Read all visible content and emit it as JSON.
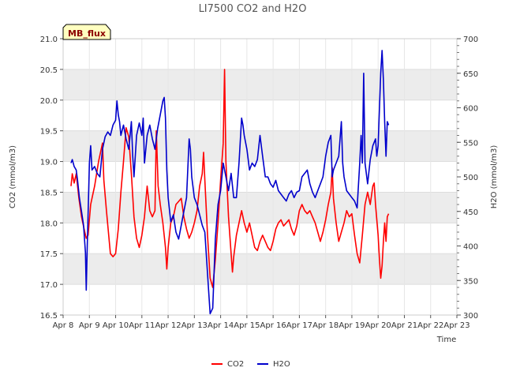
{
  "chart_data": {
    "type": "line",
    "title": "LI7500 CO2 and H2O",
    "badge": "MB_flux",
    "xlabel": "Time",
    "ylabel_left": "CO2 (mmol/m3)",
    "ylabel_right": "H2O (mmol/m3)",
    "x_ticks": [
      "Apr 8",
      "Apr 9",
      "Apr 10",
      "Apr 11",
      "Apr 12",
      "Apr 13",
      "Apr 14",
      "Apr 15",
      "Apr 16",
      "Apr 17",
      "Apr 18",
      "Apr 19",
      "Apr 20",
      "Apr 21",
      "Apr 22",
      "Apr 23"
    ],
    "xlim": [
      0,
      15
    ],
    "ylim_left": [
      16.5,
      21.0
    ],
    "yticks_left": [
      "16.5",
      "17.0",
      "17.5",
      "18.0",
      "18.5",
      "19.0",
      "19.5",
      "20.0",
      "20.5",
      "21.0"
    ],
    "ylim_right": [
      300,
      700
    ],
    "yticks_right": [
      "300",
      "350",
      "400",
      "450",
      "500",
      "550",
      "600",
      "650",
      "700"
    ],
    "grid": true,
    "legend_position": "bottom-center",
    "colors": {
      "co2": "#ff0000",
      "h2o": "#0000cc",
      "band": "#ececec",
      "badge_fill": "#ffffc0",
      "badge_text": "#8b0000"
    },
    "x_unit_note": "x values are days after Apr 8 (0 = Apr 8, 15 = Apr 23)",
    "series": [
      {
        "name": "CO2",
        "axis": "left",
        "color": "#ff0000",
        "points": [
          [
            0.3,
            18.6
          ],
          [
            0.35,
            18.8
          ],
          [
            0.42,
            18.65
          ],
          [
            0.5,
            18.8
          ],
          [
            0.6,
            18.4
          ],
          [
            0.7,
            18.1
          ],
          [
            0.8,
            17.9
          ],
          [
            0.88,
            17.75
          ],
          [
            0.95,
            17.8
          ],
          [
            1.05,
            18.3
          ],
          [
            1.2,
            18.6
          ],
          [
            1.35,
            19.0
          ],
          [
            1.5,
            19.3
          ],
          [
            1.55,
            18.7
          ],
          [
            1.65,
            18.2
          ],
          [
            1.8,
            17.5
          ],
          [
            1.9,
            17.45
          ],
          [
            2.0,
            17.5
          ],
          [
            2.1,
            17.9
          ],
          [
            2.2,
            18.5
          ],
          [
            2.3,
            19.0
          ],
          [
            2.4,
            19.55
          ],
          [
            2.5,
            19.4
          ],
          [
            2.6,
            18.8
          ],
          [
            2.7,
            18.1
          ],
          [
            2.8,
            17.75
          ],
          [
            2.9,
            17.6
          ],
          [
            3.0,
            17.8
          ],
          [
            3.1,
            18.1
          ],
          [
            3.2,
            18.6
          ],
          [
            3.3,
            18.2
          ],
          [
            3.4,
            18.1
          ],
          [
            3.5,
            18.2
          ],
          [
            3.55,
            19.5
          ],
          [
            3.62,
            18.6
          ],
          [
            3.7,
            18.3
          ],
          [
            3.8,
            18.0
          ],
          [
            3.9,
            17.6
          ],
          [
            3.95,
            17.25
          ],
          [
            4.0,
            17.6
          ],
          [
            4.1,
            18.0
          ],
          [
            4.2,
            18.1
          ],
          [
            4.3,
            18.3
          ],
          [
            4.4,
            18.35
          ],
          [
            4.5,
            18.4
          ],
          [
            4.6,
            18.1
          ],
          [
            4.7,
            17.9
          ],
          [
            4.8,
            17.75
          ],
          [
            4.9,
            17.85
          ],
          [
            5.0,
            18.0
          ],
          [
            5.1,
            18.2
          ],
          [
            5.2,
            18.6
          ],
          [
            5.3,
            18.8
          ],
          [
            5.35,
            19.15
          ],
          [
            5.4,
            18.7
          ],
          [
            5.5,
            17.8
          ],
          [
            5.6,
            17.1
          ],
          [
            5.7,
            16.95
          ],
          [
            5.8,
            17.4
          ],
          [
            5.9,
            18.0
          ],
          [
            6.0,
            18.7
          ],
          [
            6.1,
            19.3
          ],
          [
            6.15,
            20.5
          ],
          [
            6.2,
            19.0
          ],
          [
            6.3,
            18.1
          ],
          [
            6.4,
            17.5
          ],
          [
            6.45,
            17.2
          ],
          [
            6.5,
            17.45
          ],
          [
            6.6,
            17.8
          ],
          [
            6.7,
            18.0
          ],
          [
            6.8,
            18.2
          ],
          [
            6.9,
            18.0
          ],
          [
            7.0,
            17.85
          ],
          [
            7.1,
            18.0
          ],
          [
            7.2,
            17.8
          ],
          [
            7.3,
            17.6
          ],
          [
            7.4,
            17.55
          ],
          [
            7.5,
            17.7
          ],
          [
            7.6,
            17.8
          ],
          [
            7.7,
            17.7
          ],
          [
            7.8,
            17.6
          ],
          [
            7.9,
            17.55
          ],
          [
            8.0,
            17.7
          ],
          [
            8.1,
            17.9
          ],
          [
            8.2,
            18.0
          ],
          [
            8.3,
            18.05
          ],
          [
            8.4,
            17.95
          ],
          [
            8.5,
            18.0
          ],
          [
            8.6,
            18.05
          ],
          [
            8.7,
            17.9
          ],
          [
            8.8,
            17.8
          ],
          [
            8.9,
            17.95
          ],
          [
            9.0,
            18.2
          ],
          [
            9.1,
            18.3
          ],
          [
            9.2,
            18.2
          ],
          [
            9.3,
            18.15
          ],
          [
            9.4,
            18.2
          ],
          [
            9.5,
            18.1
          ],
          [
            9.6,
            18.0
          ],
          [
            9.7,
            17.85
          ],
          [
            9.8,
            17.7
          ],
          [
            9.9,
            17.85
          ],
          [
            10.0,
            18.05
          ],
          [
            10.1,
            18.3
          ],
          [
            10.2,
            18.5
          ],
          [
            10.25,
            18.9
          ],
          [
            10.3,
            18.4
          ],
          [
            10.4,
            18.0
          ],
          [
            10.5,
            17.7
          ],
          [
            10.6,
            17.85
          ],
          [
            10.7,
            18.0
          ],
          [
            10.8,
            18.2
          ],
          [
            10.9,
            18.1
          ],
          [
            11.0,
            18.15
          ],
          [
            11.1,
            17.8
          ],
          [
            11.2,
            17.5
          ],
          [
            11.3,
            17.35
          ],
          [
            11.4,
            17.8
          ],
          [
            11.5,
            18.3
          ],
          [
            11.6,
            18.5
          ],
          [
            11.7,
            18.3
          ],
          [
            11.8,
            18.6
          ],
          [
            11.85,
            18.65
          ],
          [
            11.9,
            18.3
          ],
          [
            12.0,
            17.8
          ],
          [
            12.05,
            17.4
          ],
          [
            12.1,
            17.1
          ],
          [
            12.15,
            17.3
          ],
          [
            12.2,
            17.7
          ],
          [
            12.25,
            18.0
          ],
          [
            12.3,
            17.7
          ],
          [
            12.35,
            18.1
          ],
          [
            12.4,
            18.15
          ]
        ]
      },
      {
        "name": "H2O",
        "axis": "right",
        "color": "#0000cc",
        "points": [
          [
            0.3,
            520
          ],
          [
            0.35,
            525
          ],
          [
            0.42,
            515
          ],
          [
            0.5,
            510
          ],
          [
            0.55,
            495
          ],
          [
            0.62,
            470
          ],
          [
            0.7,
            450
          ],
          [
            0.78,
            430
          ],
          [
            0.85,
            390
          ],
          [
            0.88,
            336
          ],
          [
            0.92,
            400
          ],
          [
            1.0,
            520
          ],
          [
            1.05,
            545
          ],
          [
            1.1,
            510
          ],
          [
            1.2,
            515
          ],
          [
            1.3,
            505
          ],
          [
            1.4,
            500
          ],
          [
            1.5,
            540
          ],
          [
            1.6,
            558
          ],
          [
            1.7,
            565
          ],
          [
            1.8,
            560
          ],
          [
            1.9,
            575
          ],
          [
            2.0,
            582
          ],
          [
            2.05,
            610
          ],
          [
            2.1,
            590
          ],
          [
            2.15,
            580
          ],
          [
            2.2,
            560
          ],
          [
            2.3,
            575
          ],
          [
            2.4,
            555
          ],
          [
            2.5,
            540
          ],
          [
            2.6,
            580
          ],
          [
            2.65,
            530
          ],
          [
            2.7,
            500
          ],
          [
            2.8,
            560
          ],
          [
            2.9,
            578
          ],
          [
            3.0,
            560
          ],
          [
            3.05,
            585
          ],
          [
            3.1,
            520
          ],
          [
            3.2,
            560
          ],
          [
            3.3,
            575
          ],
          [
            3.4,
            555
          ],
          [
            3.5,
            540
          ],
          [
            3.6,
            570
          ],
          [
            3.7,
            590
          ],
          [
            3.8,
            610
          ],
          [
            3.85,
            615
          ],
          [
            3.9,
            585
          ],
          [
            3.95,
            510
          ],
          [
            4.0,
            470
          ],
          [
            4.1,
            435
          ],
          [
            4.2,
            445
          ],
          [
            4.3,
            420
          ],
          [
            4.4,
            410
          ],
          [
            4.5,
            430
          ],
          [
            4.6,
            450
          ],
          [
            4.7,
            470
          ],
          [
            4.8,
            555
          ],
          [
            4.85,
            540
          ],
          [
            4.9,
            500
          ],
          [
            5.0,
            470
          ],
          [
            5.1,
            460
          ],
          [
            5.2,
            445
          ],
          [
            5.3,
            430
          ],
          [
            5.4,
            420
          ],
          [
            5.5,
            360
          ],
          [
            5.6,
            302
          ],
          [
            5.7,
            310
          ],
          [
            5.8,
            410
          ],
          [
            5.9,
            460
          ],
          [
            6.0,
            480
          ],
          [
            6.1,
            520
          ],
          [
            6.2,
            500
          ],
          [
            6.3,
            480
          ],
          [
            6.4,
            505
          ],
          [
            6.5,
            470
          ],
          [
            6.6,
            470
          ],
          [
            6.7,
            520
          ],
          [
            6.8,
            585
          ],
          [
            6.85,
            575
          ],
          [
            6.9,
            560
          ],
          [
            7.0,
            540
          ],
          [
            7.1,
            510
          ],
          [
            7.2,
            520
          ],
          [
            7.3,
            515
          ],
          [
            7.4,
            525
          ],
          [
            7.5,
            560
          ],
          [
            7.6,
            530
          ],
          [
            7.7,
            500
          ],
          [
            7.8,
            500
          ],
          [
            7.9,
            490
          ],
          [
            8.0,
            485
          ],
          [
            8.1,
            495
          ],
          [
            8.2,
            480
          ],
          [
            8.3,
            475
          ],
          [
            8.4,
            470
          ],
          [
            8.5,
            465
          ],
          [
            8.6,
            475
          ],
          [
            8.7,
            480
          ],
          [
            8.8,
            470
          ],
          [
            8.9,
            478
          ],
          [
            9.0,
            480
          ],
          [
            9.1,
            500
          ],
          [
            9.2,
            505
          ],
          [
            9.3,
            510
          ],
          [
            9.4,
            490
          ],
          [
            9.5,
            478
          ],
          [
            9.6,
            470
          ],
          [
            9.7,
            480
          ],
          [
            9.8,
            490
          ],
          [
            9.9,
            500
          ],
          [
            10.0,
            530
          ],
          [
            10.1,
            550
          ],
          [
            10.2,
            560
          ],
          [
            10.25,
            500
          ],
          [
            10.3,
            510
          ],
          [
            10.4,
            520
          ],
          [
            10.5,
            530
          ],
          [
            10.6,
            580
          ],
          [
            10.65,
            520
          ],
          [
            10.7,
            500
          ],
          [
            10.8,
            480
          ],
          [
            10.9,
            475
          ],
          [
            11.0,
            470
          ],
          [
            11.1,
            465
          ],
          [
            11.2,
            455
          ],
          [
            11.3,
            520
          ],
          [
            11.35,
            560
          ],
          [
            11.4,
            520
          ],
          [
            11.45,
            650
          ],
          [
            11.5,
            520
          ],
          [
            11.6,
            490
          ],
          [
            11.7,
            525
          ],
          [
            11.8,
            545
          ],
          [
            11.9,
            555
          ],
          [
            11.95,
            530
          ],
          [
            12.0,
            545
          ],
          [
            12.05,
            600
          ],
          [
            12.1,
            650
          ],
          [
            12.15,
            683
          ],
          [
            12.2,
            640
          ],
          [
            12.25,
            580
          ],
          [
            12.3,
            530
          ],
          [
            12.35,
            580
          ],
          [
            12.4,
            575
          ]
        ]
      }
    ]
  }
}
